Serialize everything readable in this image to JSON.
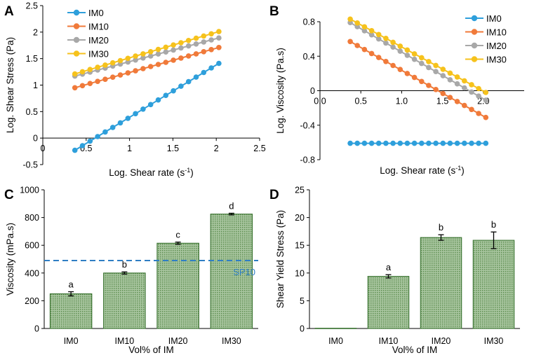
{
  "colors": {
    "IM0": "#2e9fdb",
    "IM10": "#f07a3a",
    "IM20": "#a8a8a8",
    "IM30": "#f6c21c",
    "bar_fill": "#93b58a",
    "bar_edge": "#2f6b25",
    "sp10_line": "#2f7ec4"
  },
  "chart_data": [
    {
      "panel": "A",
      "type": "line",
      "xlabel": "Log. Shear rate (s-1)",
      "ylabel": "Log. Shear Stress (Pa)",
      "xlim": [
        0,
        2.5
      ],
      "ylim": [
        -0.5,
        2.5
      ],
      "xticks": [
        "0",
        "0.5",
        "1",
        "1.5",
        "2",
        "2.5"
      ],
      "yticks": [
        "-0.5",
        "0",
        "0.5",
        "1",
        "1.5",
        "2",
        "2.5"
      ],
      "legend": [
        "IM0",
        "IM10",
        "IM20",
        "IM30"
      ],
      "series": [
        {
          "name": "IM0",
          "x_start": 0.37,
          "x_end": 2.03,
          "n_points": 20,
          "y_start": -0.23,
          "y_end": 1.41
        },
        {
          "name": "IM10",
          "x_start": 0.37,
          "x_end": 2.03,
          "n_points": 20,
          "y_start": 0.95,
          "y_end": 1.71
        },
        {
          "name": "IM20",
          "x_start": 0.37,
          "x_end": 2.03,
          "n_points": 20,
          "y_start": 1.17,
          "y_end": 1.89
        },
        {
          "name": "IM30",
          "x_start": 0.37,
          "x_end": 2.03,
          "n_points": 20,
          "y_start": 1.21,
          "y_end": 2.01
        }
      ]
    },
    {
      "panel": "B",
      "type": "line",
      "xlabel": "Log. Shear rate (s-1)",
      "ylabel": "Log. Viscosity (Pa.s)",
      "xlim": [
        0,
        2.5
      ],
      "ylim": [
        -0.8,
        0.8
      ],
      "xticks": [
        "0.0",
        "0.5",
        "1.0",
        "1.5",
        "2.0"
      ],
      "yticks": [
        "-0.8",
        "-0.4",
        "0",
        "0.4",
        "0.8"
      ],
      "legend": [
        "IM0",
        "IM10",
        "IM20",
        "IM30"
      ],
      "series": [
        {
          "name": "IM0",
          "x_start": 0.37,
          "x_end": 2.03,
          "n_points": 20,
          "y_start": -0.61,
          "y_end": -0.61
        },
        {
          "name": "IM10",
          "x_start": 0.37,
          "x_end": 2.03,
          "n_points": 20,
          "y_start": 0.57,
          "y_end": -0.31
        },
        {
          "name": "IM20",
          "x_start": 0.37,
          "x_end": 2.03,
          "n_points": 20,
          "y_start": 0.79,
          "y_end": -0.11
        },
        {
          "name": "IM30",
          "x_start": 0.37,
          "x_end": 2.03,
          "n_points": 20,
          "y_start": 0.83,
          "y_end": -0.02
        }
      ]
    },
    {
      "panel": "C",
      "type": "bar",
      "xlabel": "Vol% of IM",
      "ylabel": "Viscosity (mPa.s)",
      "ylim": [
        0,
        1000
      ],
      "yticks": [
        "0",
        "200",
        "400",
        "600",
        "800",
        "1000"
      ],
      "categories": [
        "IM0",
        "IM10",
        "IM20",
        "IM30"
      ],
      "values": [
        250,
        400,
        615,
        825
      ],
      "errors": [
        15,
        8,
        8,
        6
      ],
      "letters": [
        "a",
        "b",
        "c",
        "d"
      ],
      "reference_line": {
        "label": "SP10",
        "value": 490
      }
    },
    {
      "panel": "D",
      "type": "bar",
      "xlabel": "Vol% of IM",
      "ylabel": "Shear Yield Stress (Pa)",
      "ylim": [
        0,
        25
      ],
      "yticks": [
        "0",
        "5",
        "10",
        "15",
        "20",
        "25"
      ],
      "categories": [
        "IM0",
        "IM10",
        "IM20",
        "IM30"
      ],
      "values": [
        0.05,
        9.4,
        16.4,
        15.9
      ],
      "errors": [
        0,
        0.3,
        0.5,
        1.5
      ],
      "letters": [
        "",
        "a",
        "b",
        "b"
      ]
    }
  ]
}
